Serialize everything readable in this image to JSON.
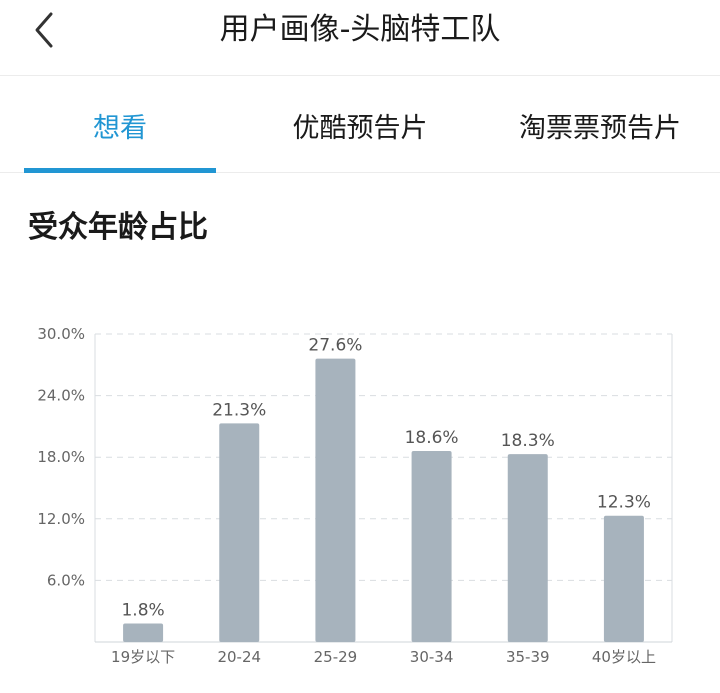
{
  "header": {
    "title": "用户画像-头脑特工队",
    "back_icon": "chevron-left-icon"
  },
  "tabs": [
    {
      "label": "想看",
      "active": true
    },
    {
      "label": "优酷预告片",
      "active": false
    },
    {
      "label": "淘票票预告片",
      "active": false
    }
  ],
  "section": {
    "title": "受众年龄占比"
  },
  "colors": {
    "accent": "#2196d3",
    "bar": "#a7b3bd",
    "grid": "#d9dde1"
  },
  "chart_data": {
    "type": "bar",
    "categories": [
      "19岁以下",
      "20-24",
      "25-29",
      "30-34",
      "35-39",
      "40岁以上"
    ],
    "values": [
      1.8,
      21.3,
      27.6,
      18.6,
      18.3,
      12.3
    ],
    "value_labels": [
      "1.8%",
      "21.3%",
      "27.6%",
      "18.6%",
      "18.3%",
      "12.3%"
    ],
    "yticks": [
      6.0,
      12.0,
      18.0,
      24.0,
      30.0
    ],
    "ytick_labels": [
      "6.0%",
      "12.0%",
      "18.0%",
      "24.0%",
      "30.0%"
    ],
    "ylim": [
      0,
      30
    ],
    "grid": true,
    "title": "",
    "xlabel": "",
    "ylabel": ""
  }
}
